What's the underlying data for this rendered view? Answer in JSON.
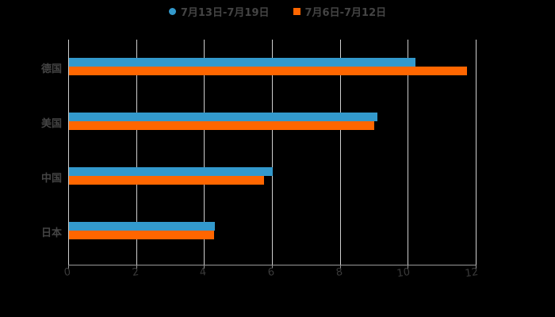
{
  "chart_data": {
    "type": "bar",
    "orientation": "horizontal",
    "title": "",
    "xlabel": "",
    "ylabel": "",
    "categories": [
      "德国",
      "美国",
      "中国",
      "日本"
    ],
    "series": [
      {
        "name": "7月13日-7月19日",
        "color": "#3399cc",
        "marker": "circle",
        "values": [
          10.2,
          9.08,
          6.0,
          4.3
        ]
      },
      {
        "name": "7月6日-7月12日",
        "color": "#ff6600",
        "marker": "square",
        "values": [
          11.72,
          8.99,
          5.74,
          4.27
        ]
      }
    ],
    "xlim": [
      0,
      12
    ],
    "xticks": [
      "0",
      "2",
      "4",
      "6",
      "8",
      "10",
      "12"
    ],
    "grid": true,
    "legend_position": "top"
  },
  "legend": {
    "items": [
      {
        "label": "7月13日-7月19日",
        "color": "#3399cc"
      },
      {
        "label": "7月6日-7月12日",
        "color": "#ff6600"
      }
    ]
  }
}
